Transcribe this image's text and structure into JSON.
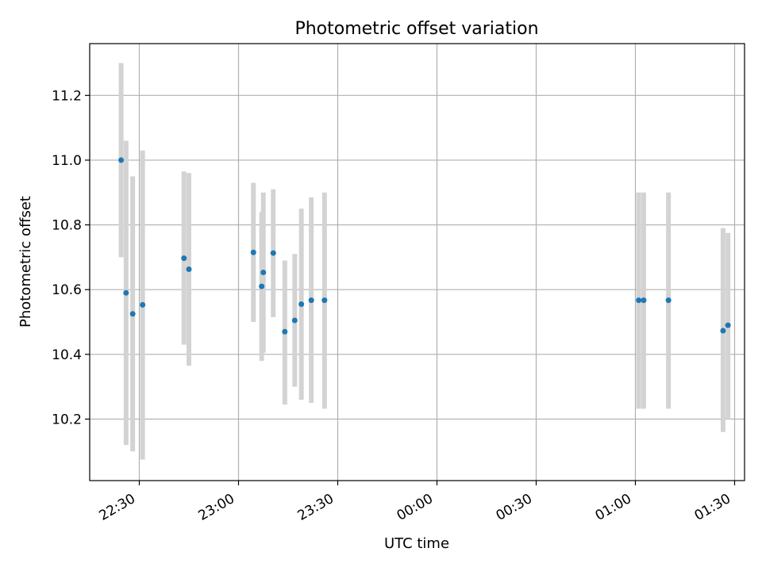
{
  "chart_data": {
    "type": "scatter",
    "title": "Photometric offset variation",
    "xlabel": "UTC time",
    "ylabel": "Photometric offset",
    "x_axis_type": "time",
    "x_range": [
      "22:15",
      "01:33"
    ],
    "ylim": [
      10.01,
      11.36
    ],
    "grid": true,
    "x_ticks": [
      "22:30",
      "23:00",
      "23:30",
      "00:00",
      "00:30",
      "01:00",
      "01:30"
    ],
    "y_ticks": [
      10.2,
      10.4,
      10.6,
      10.8,
      11.0,
      11.2
    ],
    "colors": {
      "point": "#1f77b4",
      "errorbar": "#d3d3d3",
      "grid": "#b0b0b0"
    },
    "points": [
      {
        "t": "22:24:30",
        "y": 11.0,
        "lo": 10.7,
        "hi": 11.3
      },
      {
        "t": "22:26:00",
        "y": 10.59,
        "lo": 10.12,
        "hi": 11.06
      },
      {
        "t": "22:28:00",
        "y": 10.525,
        "lo": 10.1,
        "hi": 10.95
      },
      {
        "t": "22:31:00",
        "y": 10.553,
        "lo": 10.075,
        "hi": 11.03
      },
      {
        "t": "22:43:30",
        "y": 10.697,
        "lo": 10.43,
        "hi": 10.965
      },
      {
        "t": "22:45:00",
        "y": 10.663,
        "lo": 10.365,
        "hi": 10.96
      },
      {
        "t": "23:04:30",
        "y": 10.715,
        "lo": 10.5,
        "hi": 10.93
      },
      {
        "t": "23:07:00",
        "y": 10.61,
        "lo": 10.38,
        "hi": 10.84
      },
      {
        "t": "23:07:30",
        "y": 10.653,
        "lo": 10.405,
        "hi": 10.9
      },
      {
        "t": "23:10:30",
        "y": 10.713,
        "lo": 10.515,
        "hi": 10.91
      },
      {
        "t": "23:14:00",
        "y": 10.47,
        "lo": 10.245,
        "hi": 10.69
      },
      {
        "t": "23:17:00",
        "y": 10.505,
        "lo": 10.3,
        "hi": 10.71
      },
      {
        "t": "23:19:00",
        "y": 10.555,
        "lo": 10.26,
        "hi": 10.85
      },
      {
        "t": "23:22:00",
        "y": 10.567,
        "lo": 10.25,
        "hi": 10.885
      },
      {
        "t": "23:26:00",
        "y": 10.567,
        "lo": 10.232,
        "hi": 10.9
      },
      {
        "t": "01:01:00",
        "y": 10.567,
        "lo": 10.232,
        "hi": 10.9
      },
      {
        "t": "01:02:30",
        "y": 10.567,
        "lo": 10.232,
        "hi": 10.9
      },
      {
        "t": "01:10:00",
        "y": 10.567,
        "lo": 10.232,
        "hi": 10.9
      },
      {
        "t": "01:26:30",
        "y": 10.473,
        "lo": 10.16,
        "hi": 10.79
      },
      {
        "t": "01:28:00",
        "y": 10.49,
        "lo": 10.2,
        "hi": 10.775
      }
    ]
  }
}
